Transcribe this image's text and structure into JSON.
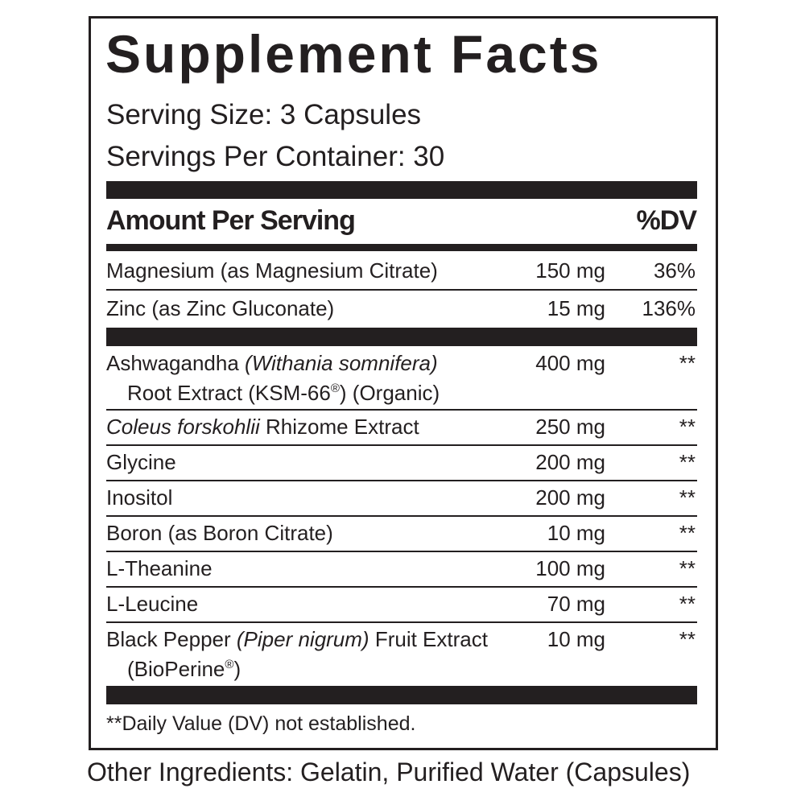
{
  "label": {
    "title": "Supplement Facts",
    "serving_size": "Serving Size: 3 Capsules",
    "servings_per_container": "Servings Per Container: 30",
    "header": {
      "amount": "Amount Per Serving",
      "dv": "%DV"
    },
    "sections": [
      {
        "rows": [
          {
            "lines": [
              [
                {
                  "text": "Magnesium (as Magnesium Citrate)",
                  "style": "normal"
                }
              ]
            ],
            "amount": "150 mg",
            "dv": "36%"
          },
          {
            "lines": [
              [
                {
                  "text": "Zinc (as Zinc Gluconate)",
                  "style": "normal"
                }
              ]
            ],
            "amount": "15 mg",
            "dv": "136%"
          }
        ]
      },
      {
        "rows": [
          {
            "lines": [
              [
                {
                  "text": "Ashwagandha ",
                  "style": "normal"
                },
                {
                  "text": "(Withania somnifera)",
                  "style": "italic"
                }
              ],
              [
                {
                  "text": "Root Extract (KSM-66",
                  "style": "normal"
                },
                {
                  "text": "®",
                  "style": "sup"
                },
                {
                  "text": ") (Organic)",
                  "style": "normal"
                }
              ]
            ],
            "amount": "400 mg",
            "dv": "**"
          },
          {
            "lines": [
              [
                {
                  "text": "Coleus forskohlii",
                  "style": "italic"
                },
                {
                  "text": " Rhizome Extract",
                  "style": "normal"
                }
              ]
            ],
            "amount": "250 mg",
            "dv": "**"
          },
          {
            "lines": [
              [
                {
                  "text": "Glycine",
                  "style": "normal"
                }
              ]
            ],
            "amount": "200 mg",
            "dv": "**"
          },
          {
            "lines": [
              [
                {
                  "text": "Inositol",
                  "style": "normal"
                }
              ]
            ],
            "amount": "200 mg",
            "dv": "**"
          },
          {
            "lines": [
              [
                {
                  "text": "Boron (as Boron Citrate)",
                  "style": "normal"
                }
              ]
            ],
            "amount": "10 mg",
            "dv": "**"
          },
          {
            "lines": [
              [
                {
                  "text": "L-Theanine",
                  "style": "normal"
                }
              ]
            ],
            "amount": "100 mg",
            "dv": "**"
          },
          {
            "lines": [
              [
                {
                  "text": "L-Leucine",
                  "style": "normal"
                }
              ]
            ],
            "amount": "70 mg",
            "dv": "**"
          },
          {
            "lines": [
              [
                {
                  "text": "Black Pepper ",
                  "style": "normal"
                },
                {
                  "text": "(Piper nigrum)",
                  "style": "italic"
                },
                {
                  "text": " Fruit Extract",
                  "style": "normal"
                }
              ],
              [
                {
                  "text": "(BioPerine",
                  "style": "normal"
                },
                {
                  "text": "®",
                  "style": "sup"
                },
                {
                  "text": ")",
                  "style": "normal"
                }
              ]
            ],
            "amount": "10 mg",
            "dv": "**"
          }
        ]
      }
    ],
    "footnote": "**Daily Value (DV) not established.",
    "other_ingredients": "Other Ingredients: Gelatin, Purified Water (Capsules)"
  }
}
